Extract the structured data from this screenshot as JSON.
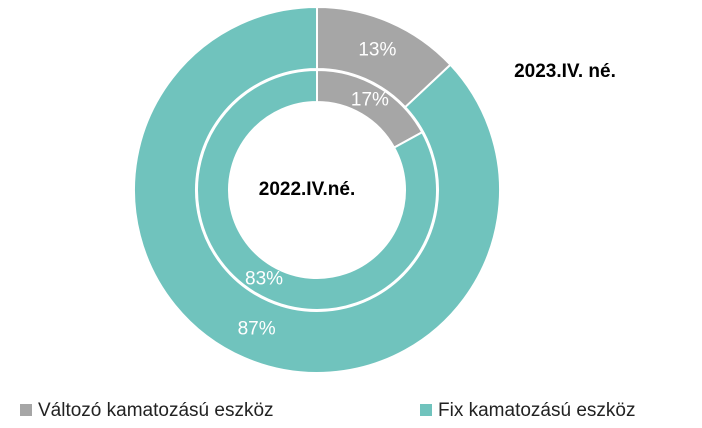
{
  "chart_data": {
    "type": "donut",
    "categories": [
      "2022.IV.né.",
      "2023.IV. né."
    ],
    "series": [
      {
        "name": "Változó kamatozású eszköz",
        "color": "#a6a6a6",
        "values": [
          17,
          13
        ],
        "value_labels": [
          "17%",
          "13%"
        ]
      },
      {
        "name": "Fix kamatozású eszköz",
        "color": "#70c3bd",
        "values": [
          83,
          87
        ],
        "value_labels": [
          "83%",
          "87%"
        ]
      }
    ],
    "legend": "bottom"
  }
}
